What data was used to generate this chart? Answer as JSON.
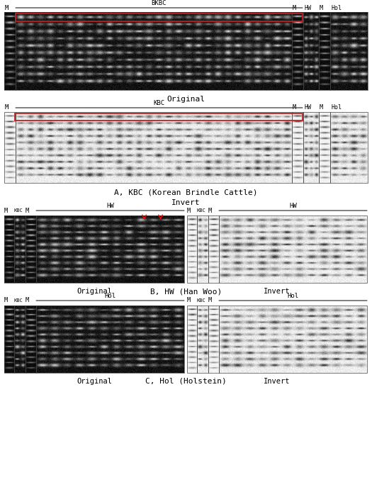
{
  "bg_color": "#ffffff",
  "panel_A_orig_label": "Original",
  "panel_A_caption": "A, KBC (Korean Brindle Cattle)",
  "panel_A_invert_label": "Invert",
  "panel_B_caption": "B, HW (Han Woo)",
  "panel_B_orig_label": "Original",
  "panel_B_invert_label": "Invert",
  "panel_C_caption": "C, Hol (Holstein)",
  "panel_C_orig_label": "Original",
  "panel_C_invert_label": "Invert",
  "label_BKBC": "BKBC",
  "label_KBC": "KBC",
  "label_HW": "HW",
  "label_Hol": "Hol",
  "label_M": "M",
  "label_KBC_small": "KBC",
  "invert_label": "Invert"
}
